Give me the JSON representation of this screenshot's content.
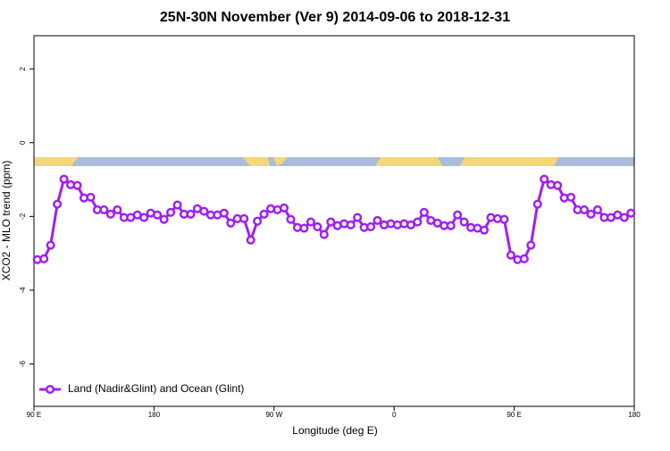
{
  "chart_data": {
    "type": "line",
    "title": "25N-30N November (Ver 9)   2014-09-06 to 2018-12-31",
    "x_label": "Longitude (deg E)",
    "y_label": "XCO2 - MLO trend (ppm)",
    "x": [
      92.5,
      97.5,
      102.5,
      107.5,
      112.5,
      117.5,
      122.5,
      127.5,
      132.5,
      137.5,
      142.5,
      147.5,
      152.5,
      157.5,
      162.5,
      167.5,
      172.5,
      177.5,
      182.5,
      187.5,
      192.5,
      197.5,
      202.5,
      207.5,
      212.5,
      217.5,
      222.5,
      227.5,
      232.5,
      237.5,
      242.5,
      247.5,
      252.5,
      257.5,
      262.5,
      267.5,
      272.5,
      277.5,
      282.5,
      287.5,
      292.5,
      297.5,
      302.5,
      307.5,
      312.5,
      317.5,
      322.5,
      327.5,
      332.5,
      337.5,
      342.5,
      347.5,
      352.5,
      357.5,
      362.5,
      367.5,
      372.5,
      377.5,
      382.5,
      387.5,
      392.5,
      397.5,
      402.5,
      407.5,
      412.5,
      417.5,
      422.5,
      427.5,
      432.5,
      437.5,
      442.5,
      447.5,
      452.5,
      457.5,
      462.5,
      467.5,
      472.5,
      477.5,
      482.5,
      487.5,
      492.5,
      497.5,
      502.5,
      507.5,
      512.5,
      517.5,
      522.5,
      527.5,
      532.5,
      537.5
    ],
    "series": [
      {
        "name": "Land (Nadir&Glint) and Ocean (Glint)",
        "color": "#a020f0",
        "values": [
          -3.17,
          -3.15,
          -2.78,
          -1.67,
          -0.99,
          -1.14,
          -1.16,
          -1.5,
          -1.48,
          -1.82,
          -1.82,
          -1.94,
          -1.82,
          -2.03,
          -2.03,
          -1.96,
          -2.03,
          -1.91,
          -1.96,
          -2.08,
          -1.89,
          -1.69,
          -1.94,
          -1.94,
          -1.79,
          -1.86,
          -1.96,
          -1.96,
          -1.91,
          -2.18,
          -2.06,
          -2.06,
          -2.64,
          -2.13,
          -1.94,
          -1.79,
          -1.82,
          -1.77,
          -2.08,
          -2.3,
          -2.32,
          -2.15,
          -2.28,
          -2.49,
          -2.15,
          -2.25,
          -2.2,
          -2.23,
          -2.03,
          -2.3,
          -2.28,
          -2.11,
          -2.23,
          -2.2,
          -2.23,
          -2.2,
          -2.23,
          -2.15,
          -1.89,
          -2.11,
          -2.18,
          -2.25,
          -2.25,
          -1.96,
          -2.15,
          -2.3,
          -2.32,
          -2.37,
          -2.03,
          -2.06,
          -2.08,
          -3.05,
          -3.17,
          -3.15,
          -2.78,
          -1.67,
          -0.99,
          -1.14,
          -1.16,
          -1.5,
          -1.48,
          -1.82,
          -1.82,
          -1.94,
          -1.82,
          -2.03,
          -2.03,
          -1.96,
          -2.03,
          -1.91
        ]
      }
    ],
    "xlim": [
      90,
      540
    ],
    "xticks": [
      {
        "value": 90,
        "label": "90 E"
      },
      {
        "value": 180,
        "label": "180"
      },
      {
        "value": 270,
        "label": "90 W"
      },
      {
        "value": 360,
        "label": "0"
      },
      {
        "value": 450,
        "label": "90 E"
      },
      {
        "value": 540,
        "label": "180"
      }
    ],
    "ylim": [
      -7.15,
      2.9
    ],
    "yticks": [
      2,
      0,
      -2,
      -4,
      -6
    ],
    "legend": "bottom-left"
  }
}
